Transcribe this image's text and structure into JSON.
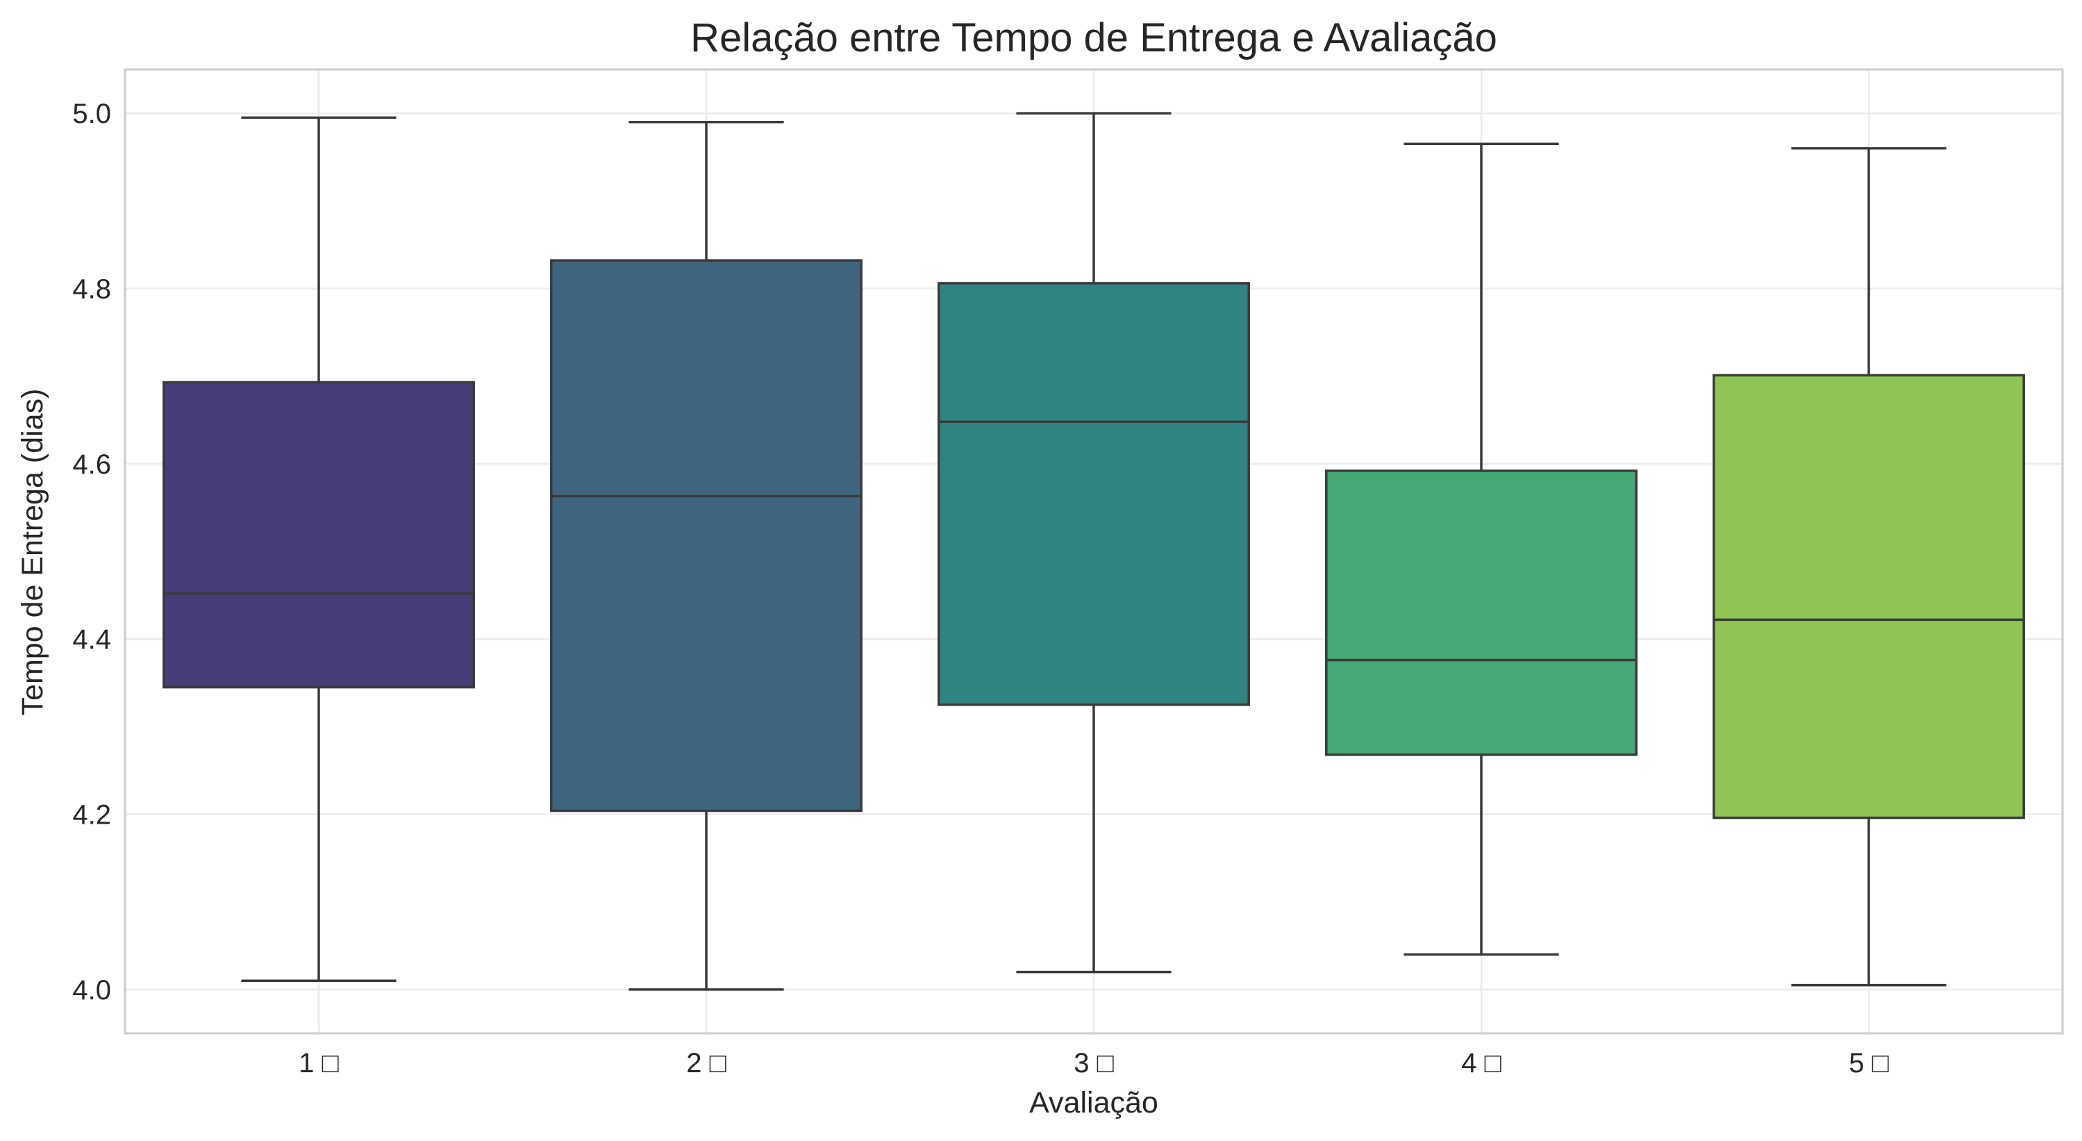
{
  "chart_data": {
    "type": "box",
    "title": "Relação entre Tempo de Entrega e Avaliação",
    "xlabel": "Avaliação",
    "ylabel": "Tempo de Entrega (dias)",
    "categories": [
      "1 □",
      "2 □",
      "3 □",
      "4 □",
      "5 □"
    ],
    "ylim": [
      3.95,
      5.05
    ],
    "yticks": [
      "4.0",
      "4.2",
      "4.4",
      "4.6",
      "4.8",
      "5.0"
    ],
    "grid": true,
    "boxes": [
      {
        "category": "1 □",
        "whisker_low": 4.01,
        "q1": 4.345,
        "median": 4.452,
        "q3": 4.693,
        "whisker_high": 4.995,
        "color": "#483d77"
      },
      {
        "category": "2 □",
        "whisker_low": 4.0,
        "q1": 4.204,
        "median": 4.563,
        "q3": 4.832,
        "whisker_high": 4.99,
        "color": "#3d6580"
      },
      {
        "category": "3 □",
        "whisker_low": 4.02,
        "q1": 4.325,
        "median": 4.648,
        "q3": 4.806,
        "whisker_high": 5.0,
        "color": "#2e8480"
      },
      {
        "category": "4 □",
        "whisker_low": 4.04,
        "q1": 4.268,
        "median": 4.376,
        "q3": 4.592,
        "whisker_high": 4.965,
        "color": "#46a877"
      },
      {
        "category": "5 □",
        "whisker_low": 4.005,
        "q1": 4.196,
        "median": 4.422,
        "q3": 4.701,
        "whisker_high": 4.96,
        "color": "#8fc554"
      }
    ]
  }
}
